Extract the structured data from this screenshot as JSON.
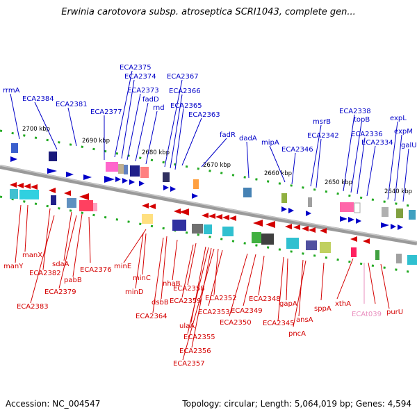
{
  "title": "Erwinia carotovora subsp. atroseptica SCRI1043, complete gen...",
  "accession": "Accession: NC_004547",
  "topology": "Topology: circular; Length: 5,064,019 bp; Genes: 4,594",
  "ticks": [
    "2700 kbp",
    "2690 kbp",
    "2680 kbp",
    "2670 kbp",
    "2660 kbp",
    "2650 kbp",
    "2640 kbp"
  ],
  "colors": {
    "forward": "#0000c8",
    "reverse": "#d40000",
    "rna": "#e98fbf",
    "backbone": "#808080"
  },
  "forward_labels": [
    "rrmA",
    "ECA2384",
    "ECA2381",
    "ECA2377",
    "ECA2375",
    "ECA2374",
    "ECA2373",
    "fadD",
    "rnd",
    "ECA2367",
    "ECA2366",
    "ECA2365",
    "ECA2363",
    "fadR",
    "dadA",
    "mipA",
    "ECA2346",
    "msrB",
    "ECA2342",
    "ECA2338",
    "topB",
    "ECA2336",
    "ECA2334",
    "expL",
    "expM",
    "galU"
  ],
  "reverse_labels": [
    "manX",
    "manY",
    "ECA2382",
    "ECA2383",
    "sdaA",
    "pabB",
    "ECA2379",
    "ECA2376",
    "minE",
    "minC",
    "minD",
    "dsbB",
    "ECA2364",
    "nhaB",
    "ECA2358",
    "ECA2359",
    "ulaA",
    "ECA2355",
    "ECA2356",
    "ECA2357",
    "ECA2352",
    "ECA2353",
    "ECA2350",
    "ECA2349",
    "ECA2348",
    "gapA",
    "ECA2345",
    "ansA",
    "pncA",
    "sppA",
    "xthA",
    "ECAt039",
    "purU"
  ]
}
